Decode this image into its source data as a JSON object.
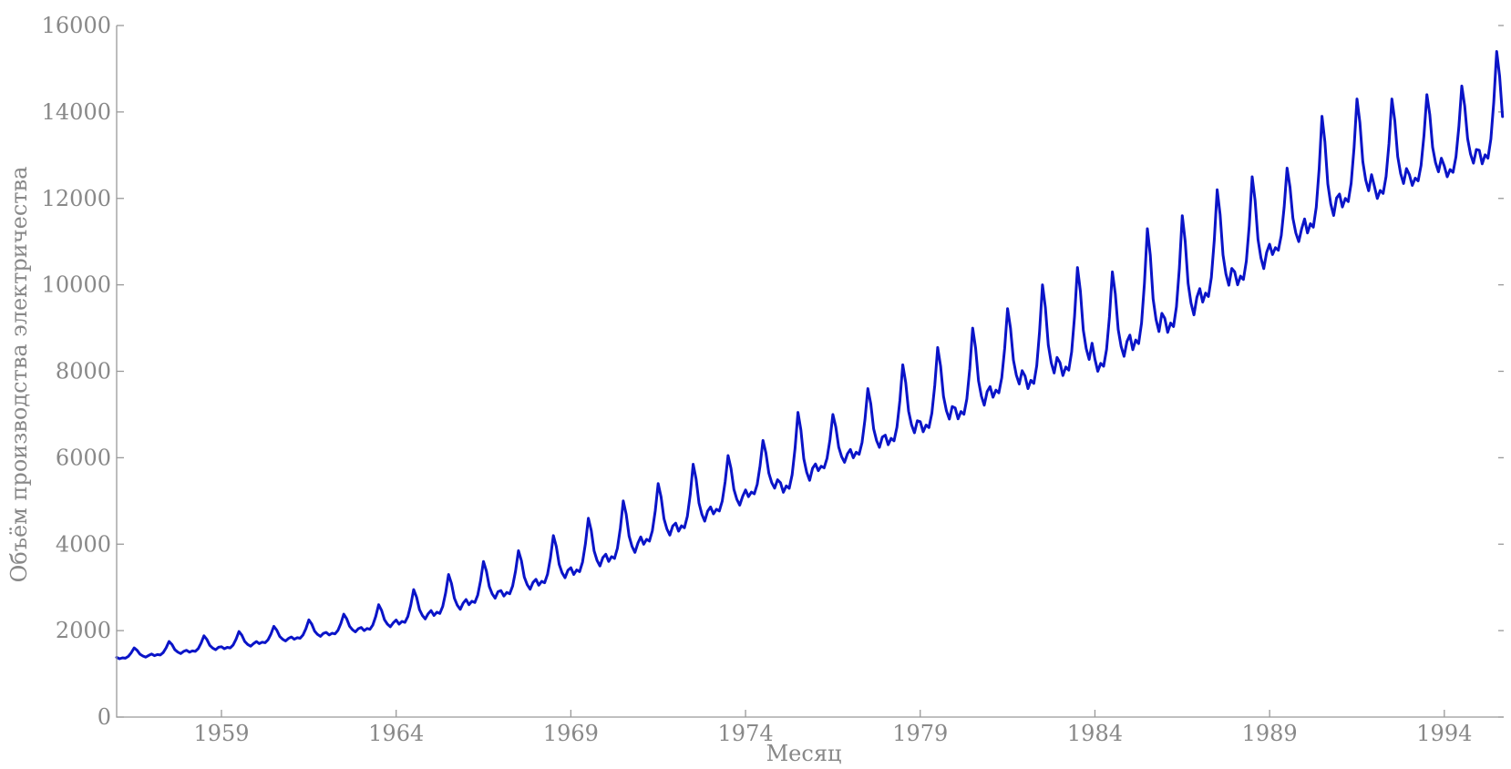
{
  "chart_data": {
    "type": "line",
    "title": "",
    "xlabel": "Месяц",
    "ylabel": "Объём производства электричества",
    "xlim": [
      1956.0,
      1995.7
    ],
    "ylim": [
      0,
      16000
    ],
    "grid": false,
    "legend": "none",
    "x_ticks": [
      "1959",
      "1964",
      "1969",
      "1974",
      "1979",
      "1984",
      "1989",
      "1994"
    ],
    "y_ticks": [
      "0",
      "2000",
      "4000",
      "6000",
      "8000",
      "10000",
      "12000",
      "14000",
      "16000"
    ],
    "colors": {
      "series": "#0a14c8",
      "axis": "#999999",
      "text": "#888888"
    },
    "series": [
      {
        "frequency": "monthly",
        "start": "1956-01",
        "note_values": "seasonal peak each July",
        "annual": [
          {
            "year": 1956,
            "low": 1350,
            "high": 1600
          },
          {
            "year": 1957,
            "low": 1420,
            "high": 1750
          },
          {
            "year": 1958,
            "low": 1500,
            "high": 1880
          },
          {
            "year": 1959,
            "low": 1580,
            "high": 1980
          },
          {
            "year": 1960,
            "low": 1700,
            "high": 2100
          },
          {
            "year": 1961,
            "low": 1800,
            "high": 2250
          },
          {
            "year": 1962,
            "low": 1900,
            "high": 2380
          },
          {
            "year": 1963,
            "low": 2000,
            "high": 2600
          },
          {
            "year": 1964,
            "low": 2150,
            "high": 2950
          },
          {
            "year": 1965,
            "low": 2350,
            "high": 3300
          },
          {
            "year": 1966,
            "low": 2600,
            "high": 3600
          },
          {
            "year": 1967,
            "low": 2800,
            "high": 3850
          },
          {
            "year": 1968,
            "low": 3050,
            "high": 4200
          },
          {
            "year": 1969,
            "low": 3300,
            "high": 4600
          },
          {
            "year": 1970,
            "low": 3600,
            "high": 5000
          },
          {
            "year": 1971,
            "low": 4000,
            "high": 5400
          },
          {
            "year": 1972,
            "low": 4300,
            "high": 5850
          },
          {
            "year": 1973,
            "low": 4700,
            "high": 6050
          },
          {
            "year": 1974,
            "low": 5100,
            "high": 6400
          },
          {
            "year": 1975,
            "low": 5200,
            "high": 7050
          },
          {
            "year": 1976,
            "low": 5700,
            "high": 7000
          },
          {
            "year": 1977,
            "low": 6000,
            "high": 7600
          },
          {
            "year": 1978,
            "low": 6300,
            "high": 8150
          },
          {
            "year": 1979,
            "low": 6600,
            "high": 8550
          },
          {
            "year": 1980,
            "low": 6900,
            "high": 9000
          },
          {
            "year": 1981,
            "low": 7400,
            "high": 9450
          },
          {
            "year": 1982,
            "low": 7600,
            "high": 10000
          },
          {
            "year": 1983,
            "low": 7900,
            "high": 10400
          },
          {
            "year": 1984,
            "low": 8000,
            "high": 10300
          },
          {
            "year": 1985,
            "low": 8500,
            "high": 11300
          },
          {
            "year": 1986,
            "low": 8900,
            "high": 11600
          },
          {
            "year": 1987,
            "low": 9600,
            "high": 12200
          },
          {
            "year": 1988,
            "low": 10000,
            "high": 12500
          },
          {
            "year": 1989,
            "low": 10700,
            "high": 12700
          },
          {
            "year": 1990,
            "low": 11200,
            "high": 13900
          },
          {
            "year": 1991,
            "low": 11800,
            "high": 14300
          },
          {
            "year": 1992,
            "low": 12000,
            "high": 14300
          },
          {
            "year": 1993,
            "low": 12300,
            "high": 14400
          },
          {
            "year": 1994,
            "low": 12500,
            "high": 14600
          },
          {
            "year": 1995,
            "low": 12800,
            "high": 15400
          }
        ]
      }
    ]
  }
}
